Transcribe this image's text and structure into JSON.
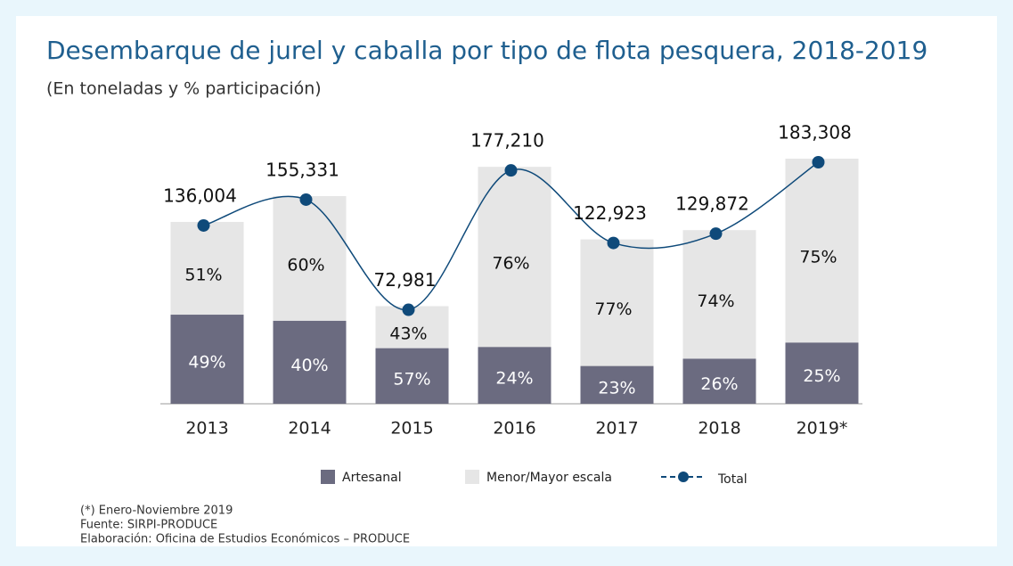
{
  "chart_data": {
    "type": "stacked-bar-line",
    "title": "Desembarque de jurel y caballa por tipo de flota pesquera, 2018-2019",
    "subtitle": "(En toneladas y % participación)",
    "categories": [
      "2013",
      "2014",
      "2015",
      "2016",
      "2017",
      "2018",
      "2019*"
    ],
    "series": [
      {
        "name": "Artesanal",
        "color": "#6b6b80",
        "values": [
          49,
          40,
          57,
          24,
          23,
          26,
          25
        ],
        "value_labels": [
          "49%",
          "40%",
          "57%",
          "24%",
          "23%",
          "26%",
          "25%"
        ]
      },
      {
        "name": "Menor/Mayor escala",
        "color": "#e6e6e6",
        "values": [
          51,
          60,
          43,
          76,
          77,
          74,
          75
        ],
        "value_labels": [
          "51%",
          "60%",
          "43%",
          "76%",
          "77%",
          "74%",
          "75%"
        ]
      },
      {
        "name": "Total",
        "color": "#0f4a7a",
        "values": [
          136004,
          155331,
          72981,
          177210,
          122923,
          129872,
          183308
        ],
        "value_labels": [
          "136,004",
          "155,331",
          "72,981",
          "177,210",
          "122,923",
          "129,872",
          "183,308"
        ]
      }
    ],
    "notes": [
      "(*) Enero-Noviembre 2019",
      "Fuente: SIRPI-PRODUCE",
      "Elaboración: Oficina de Estudios Económicos – PRODUCE"
    ]
  }
}
